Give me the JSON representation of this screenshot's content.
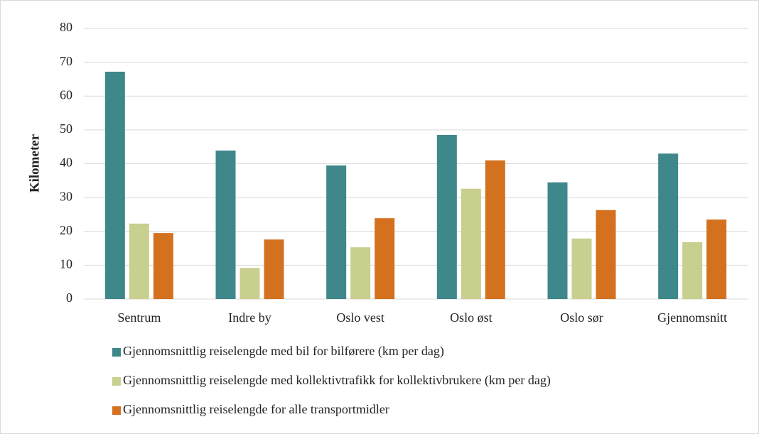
{
  "chart_data": {
    "type": "bar",
    "y_label": "Kilometer",
    "categories": [
      "Sentrum",
      "Indre by",
      "Oslo vest",
      "Oslo øst",
      "Oslo sør",
      "Gjennomsnitt"
    ],
    "series": [
      {
        "name": "Gjennomsnittlig reiselengde med bil for bilførere (km per dag)",
        "color": "#3e878b",
        "values": [
          67.2,
          43.9,
          39.5,
          48.5,
          34.5,
          43.0
        ]
      },
      {
        "name": "Gjennomsnittlig reiselengde med kollektivtrafikk for kollektivbrukere (km per dag)",
        "color": "#c8cf8f",
        "values": [
          22.3,
          9.2,
          15.3,
          32.6,
          17.9,
          16.8
        ]
      },
      {
        "name": "Gjennomsnittlig reiselengde for alle transportmidler",
        "color": "#d4711f",
        "values": [
          19.5,
          17.6,
          23.9,
          41.0,
          26.3,
          23.5
        ]
      }
    ],
    "ylim": [
      0,
      80
    ],
    "yticks": [
      0,
      10,
      20,
      30,
      40,
      50,
      60,
      70,
      80
    ],
    "grid": true,
    "legend": "bottom"
  }
}
